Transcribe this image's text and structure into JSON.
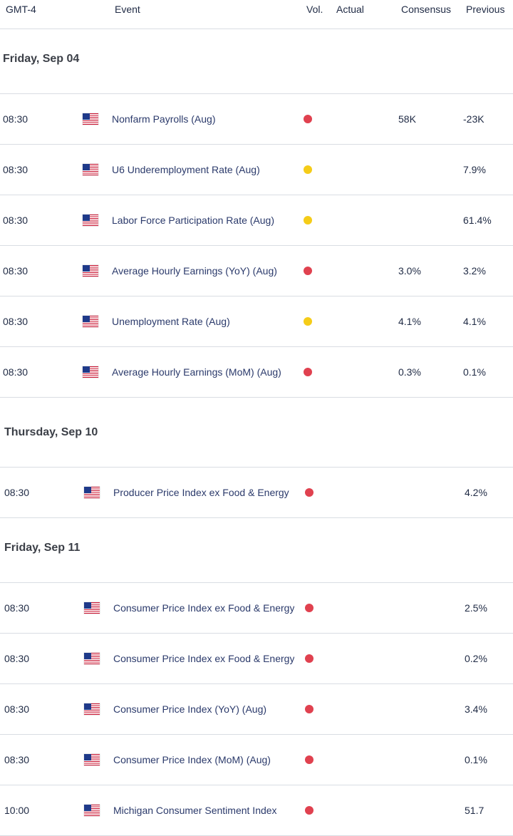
{
  "colors": {
    "high": "#e0414f",
    "medium": "#f5cc18"
  },
  "header": {
    "timezone": "GMT-4",
    "event": "Event",
    "vol": "Vol.",
    "actual": "Actual",
    "consensus": "Consensus",
    "previous": "Previous"
  },
  "days": [
    {
      "label": "Friday, Sep 04",
      "events": [
        {
          "time": "08:30",
          "flag": "us-flag-icon",
          "name": "Nonfarm Payrolls (Aug)",
          "vol": "high",
          "actual": "",
          "consensus": "58K",
          "previous": "-23K"
        },
        {
          "time": "08:30",
          "flag": "us-flag-icon",
          "name": "U6 Underemployment Rate (Aug)",
          "vol": "medium",
          "actual": "",
          "consensus": "",
          "previous": "7.9%"
        },
        {
          "time": "08:30",
          "flag": "us-flag-icon",
          "name": "Labor Force Participation Rate (Aug)",
          "vol": "medium",
          "actual": "",
          "consensus": "",
          "previous": "61.4%"
        },
        {
          "time": "08:30",
          "flag": "us-flag-icon",
          "name": "Average Hourly Earnings (YoY) (Aug)",
          "vol": "high",
          "actual": "",
          "consensus": "3.0%",
          "previous": "3.2%"
        },
        {
          "time": "08:30",
          "flag": "us-flag-icon",
          "name": "Unemployment Rate (Aug)",
          "vol": "medium",
          "actual": "",
          "consensus": "4.1%",
          "previous": "4.1%"
        },
        {
          "time": "08:30",
          "flag": "us-flag-icon",
          "name": "Average Hourly Earnings (MoM) (Aug)",
          "vol": "high",
          "actual": "",
          "consensus": "0.3%",
          "previous": "0.1%"
        }
      ]
    },
    {
      "label": "Thursday, Sep 10",
      "events": [
        {
          "time": "08:30",
          "flag": "us-flag-icon",
          "name": "Producer Price Index ex Food & Energy",
          "vol": "high",
          "actual": "",
          "consensus": "",
          "previous": "4.2%"
        }
      ]
    },
    {
      "label": "Friday, Sep 11",
      "events": [
        {
          "time": "08:30",
          "flag": "us-flag-icon",
          "name": "Consumer Price Index ex Food & Energy",
          "vol": "high",
          "actual": "",
          "consensus": "",
          "previous": "2.5%"
        },
        {
          "time": "08:30",
          "flag": "us-flag-icon",
          "name": "Consumer Price Index ex Food & Energy",
          "vol": "high",
          "actual": "",
          "consensus": "",
          "previous": "0.2%"
        },
        {
          "time": "08:30",
          "flag": "us-flag-icon",
          "name": "Consumer Price Index (YoY) (Aug)",
          "vol": "high",
          "actual": "",
          "consensus": "",
          "previous": "3.4%"
        },
        {
          "time": "08:30",
          "flag": "us-flag-icon",
          "name": "Consumer Price Index (MoM) (Aug)",
          "vol": "high",
          "actual": "",
          "consensus": "",
          "previous": "0.1%"
        },
        {
          "time": "10:00",
          "flag": "us-flag-icon",
          "name": "Michigan Consumer Sentiment Index",
          "vol": "high",
          "actual": "",
          "consensus": "",
          "previous": "51.7"
        }
      ]
    }
  ]
}
